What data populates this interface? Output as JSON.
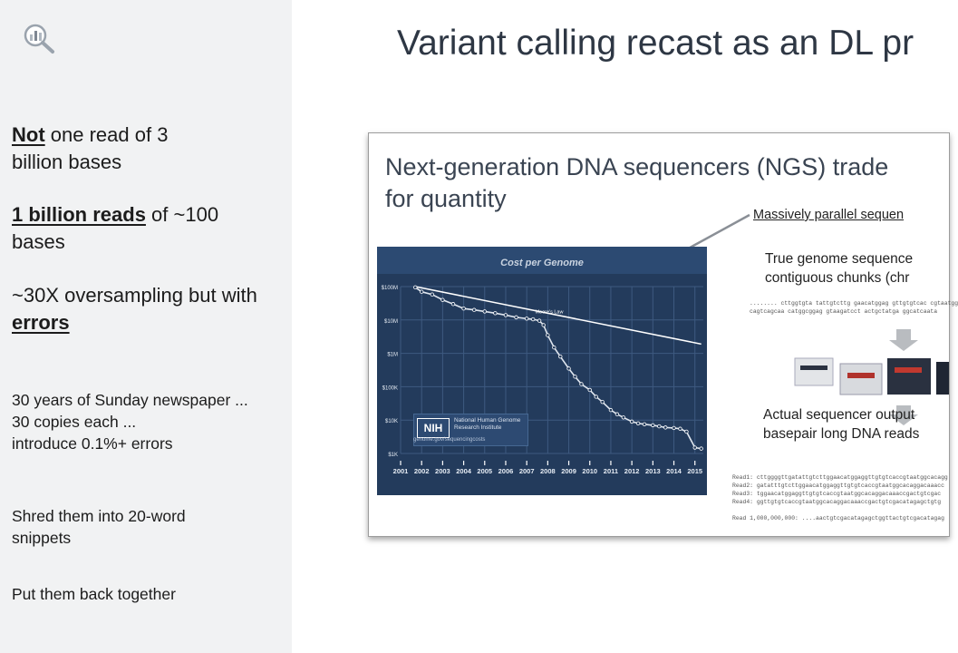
{
  "sidebar": {
    "notes": {
      "n1": {
        "em": "Not",
        "rest": " one read of 3 billion bases"
      },
      "n2": {
        "em": "1 billion reads",
        "rest": " of ~100 bases"
      },
      "n3": {
        "pre": "~30X oversampling but with ",
        "em": "errors"
      },
      "n4": {
        "line1": "30 years of Sunday newspaper ...",
        "line2": "30 copies each ...",
        "line3": "introduce 0.1%+ errors"
      },
      "n5": "Shred them into 20-word snippets",
      "n6": "Put them back together"
    }
  },
  "slide": {
    "title": "Variant calling recast as an DL pr",
    "embedded": {
      "title_line1": "Next-generation DNA sequencers (NGS) trade",
      "title_line2": "for quantity",
      "annotation_link": "Massively parallel sequen",
      "true_genome": "True genome sequence",
      "contiguous": "contiguous chunks (chr",
      "genome_seq1": "........ cttggtgta tattgtcttg gaacatggag gttgtgtcac cgtaatgg",
      "genome_seq2": "cagtcagcaa catggcggag gtaagatcct actgctatga ggcatcaata",
      "actual_output": "Actual sequencer output",
      "basepair": "basepair long DNA reads",
      "reads": [
        "Read1: cttggggttgatattgtcttggaacatggaggttgtgtcaccgtaatggcacagg",
        "Read2: gatatttgtcttggaacatggaggttgtgtcaccgtaatggcacaggacaaacc",
        "Read3: tggaacatggaggttgtgtcaccgtaatggcacaggacaaaccgactgtcgac",
        "Read4: ggttgtgtcaccgtaatggcacaggacaaaccgactgtcgacatagagctgtg",
        "Read 1,000,000,000: ....aactgtcgacatagagctggttactgtcgacatagag"
      ]
    },
    "chart_data": {
      "type": "line",
      "title": "Cost per Genome",
      "x": [
        "2001",
        "2002",
        "2003",
        "2004",
        "2005",
        "2006",
        "2007",
        "2008",
        "2009",
        "2010",
        "2011",
        "2012",
        "2013",
        "2014",
        "2015"
      ],
      "yticks": [
        "$100M",
        "$10M",
        "$1M",
        "$100K",
        "$10K",
        "$1K"
      ],
      "scale": "log",
      "ylim": [
        1000,
        100000000
      ],
      "series": [
        {
          "name": "Cost per Genome",
          "x": [
            2001.7,
            2002,
            2002.5,
            2003,
            2003.5,
            2004,
            2004.5,
            2005,
            2005.5,
            2006,
            2006.5,
            2007,
            2007.3,
            2007.6,
            2007.8,
            2008,
            2008.3,
            2008.6,
            2009,
            2009.3,
            2009.6,
            2010,
            2010.3,
            2010.6,
            2011,
            2011.3,
            2011.6,
            2012,
            2012.3,
            2012.6,
            2013,
            2013.3,
            2013.6,
            2014,
            2014.3,
            2014.6,
            2015,
            2015.3
          ],
          "y": [
            95000000,
            70000000,
            58000000,
            40000000,
            30000000,
            22000000,
            20000000,
            18000000,
            16000000,
            14000000,
            12000000,
            11000000,
            10500000,
            9500000,
            7000000,
            3500000,
            1500000,
            800000,
            350000,
            200000,
            120000,
            80000,
            50000,
            35000,
            20000,
            15000,
            12000,
            9000,
            8000,
            7500,
            7000,
            6500,
            6000,
            5800,
            5500,
            4500,
            1500,
            1400
          ]
        },
        {
          "name": "Moore's Law",
          "x": [
            2001.7,
            2015.3
          ],
          "y": [
            100000000,
            1900000
          ]
        }
      ],
      "annotations": [
        "Moore's Law"
      ]
    },
    "nih": {
      "badge": "NIH",
      "text": "National Human Genome Research Institute",
      "url": "genome.gov/sequencingcosts"
    }
  },
  "colors": {
    "sidebar_bg": "#f1f2f3",
    "chart_bg": "#233b5c",
    "chart_line": "#ffffff",
    "title_text": "#2e3744"
  },
  "icons": {
    "logo": "magnifier-chart-icon",
    "arrow": "arrow-pointer-icon"
  }
}
